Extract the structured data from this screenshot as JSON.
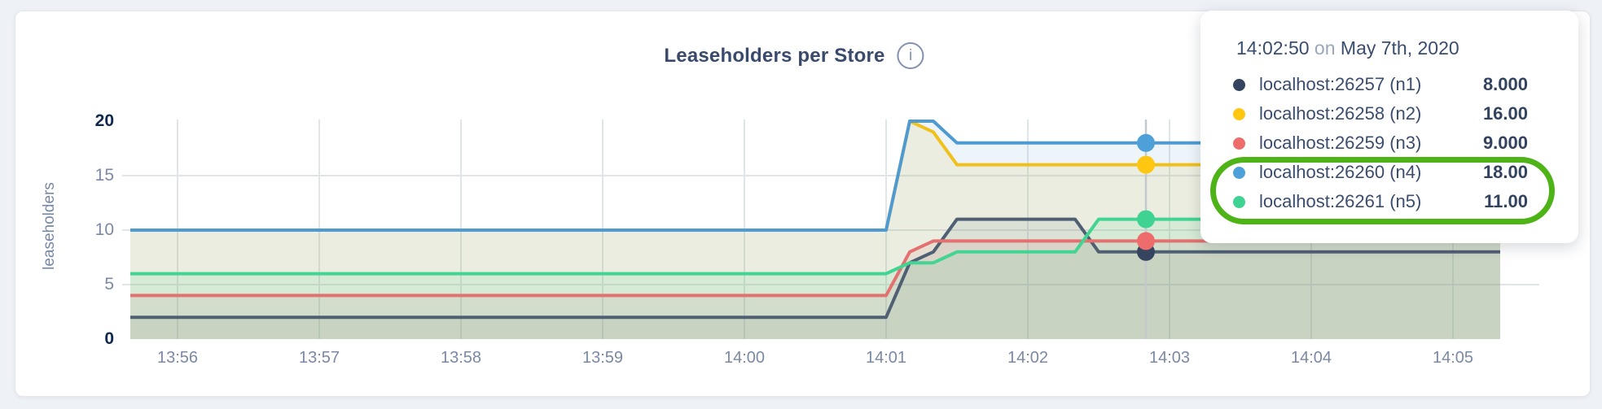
{
  "page": {
    "background": "#eef1f6"
  },
  "panel": {
    "background": "#ffffff",
    "border_color": "#e3e7ed"
  },
  "chart": {
    "title": "Leaseholders per Store",
    "info_icon_glyph": "i",
    "y_axis_label": "leaseholders",
    "grid_color": "#e0e5ea",
    "crosshair_color": "#c5c8cd",
    "tick_color": "#7b89a3",
    "tick_bold_color": "#11294e",
    "title_color": "#394a6d"
  },
  "tooltip": {
    "time": "14:02:50",
    "on_word": "on",
    "date": "May 7th, 2020"
  },
  "annotation": {
    "color": "#4eb317",
    "highlighted_series": [
      "n4",
      "n5"
    ]
  },
  "chart_data": {
    "type": "area",
    "title": "Leaseholders per Store",
    "xlabel": "",
    "ylabel": "leaseholders",
    "ylim": [
      0,
      20
    ],
    "y_ticks": [
      0,
      5,
      10,
      15,
      20
    ],
    "y_gridlines": [
      5,
      10,
      15
    ],
    "x_ticks": [
      "13:56",
      "13:57",
      "13:58",
      "13:59",
      "14:00",
      "14:01",
      "14:02",
      "14:03",
      "14:04",
      "14:05"
    ],
    "x_range": [
      "13:55:40",
      "14:05:20"
    ],
    "grid": true,
    "legend_position": "tooltip-top-right",
    "hover_time": "14:02:50",
    "series": [
      {
        "id": "n1",
        "name": "localhost:26257 (n1)",
        "color": "#506073",
        "dot_color": "#35455f",
        "fill_opacity": 0.1,
        "hover_value": 8,
        "hover_label": "8.000",
        "points": [
          [
            "13:55:40",
            2
          ],
          [
            "14:01:00",
            2
          ],
          [
            "14:01:10",
            7
          ],
          [
            "14:01:20",
            8
          ],
          [
            "14:01:30",
            11
          ],
          [
            "14:02:20",
            11
          ],
          [
            "14:02:30",
            8
          ],
          [
            "14:05:20",
            8
          ]
        ]
      },
      {
        "id": "n2",
        "name": "localhost:26258 (n2)",
        "color": "#f0c11c",
        "dot_color": "#ffc712",
        "fill_opacity": 0.12,
        "hover_value": 16,
        "hover_label": "16.00",
        "points": [
          [
            "13:55:40",
            10
          ],
          [
            "14:01:00",
            10
          ],
          [
            "14:01:10",
            20
          ],
          [
            "14:01:20",
            19
          ],
          [
            "14:01:30",
            16
          ],
          [
            "14:05:20",
            16
          ]
        ]
      },
      {
        "id": "n3",
        "name": "localhost:26259 (n3)",
        "color": "#e3716f",
        "dot_color": "#ef6c6c",
        "fill_opacity": 0.12,
        "hover_value": 9,
        "hover_label": "9.000",
        "points": [
          [
            "13:55:40",
            4
          ],
          [
            "14:01:00",
            4
          ],
          [
            "14:01:10",
            8
          ],
          [
            "14:01:20",
            9
          ],
          [
            "14:05:20",
            9
          ]
        ]
      },
      {
        "id": "n4",
        "name": "localhost:26260 (n4)",
        "color": "#4f9bd1",
        "dot_color": "#4da1d8",
        "fill_opacity": 0.1,
        "hover_value": 18,
        "hover_label": "18.00",
        "points": [
          [
            "13:55:40",
            10
          ],
          [
            "14:01:00",
            10
          ],
          [
            "14:01:10",
            20
          ],
          [
            "14:01:20",
            20
          ],
          [
            "14:01:30",
            18
          ],
          [
            "14:05:20",
            18
          ]
        ]
      },
      {
        "id": "n5",
        "name": "localhost:26261 (n5)",
        "color": "#41d492",
        "dot_color": "#3ed392",
        "fill_opacity": 0.12,
        "hover_value": 11,
        "hover_label": "11.00",
        "points": [
          [
            "13:55:40",
            6
          ],
          [
            "14:01:00",
            6
          ],
          [
            "14:01:10",
            7
          ],
          [
            "14:01:20",
            7
          ],
          [
            "14:01:30",
            8
          ],
          [
            "14:02:20",
            8
          ],
          [
            "14:02:30",
            11
          ],
          [
            "14:05:20",
            11
          ]
        ]
      }
    ]
  }
}
